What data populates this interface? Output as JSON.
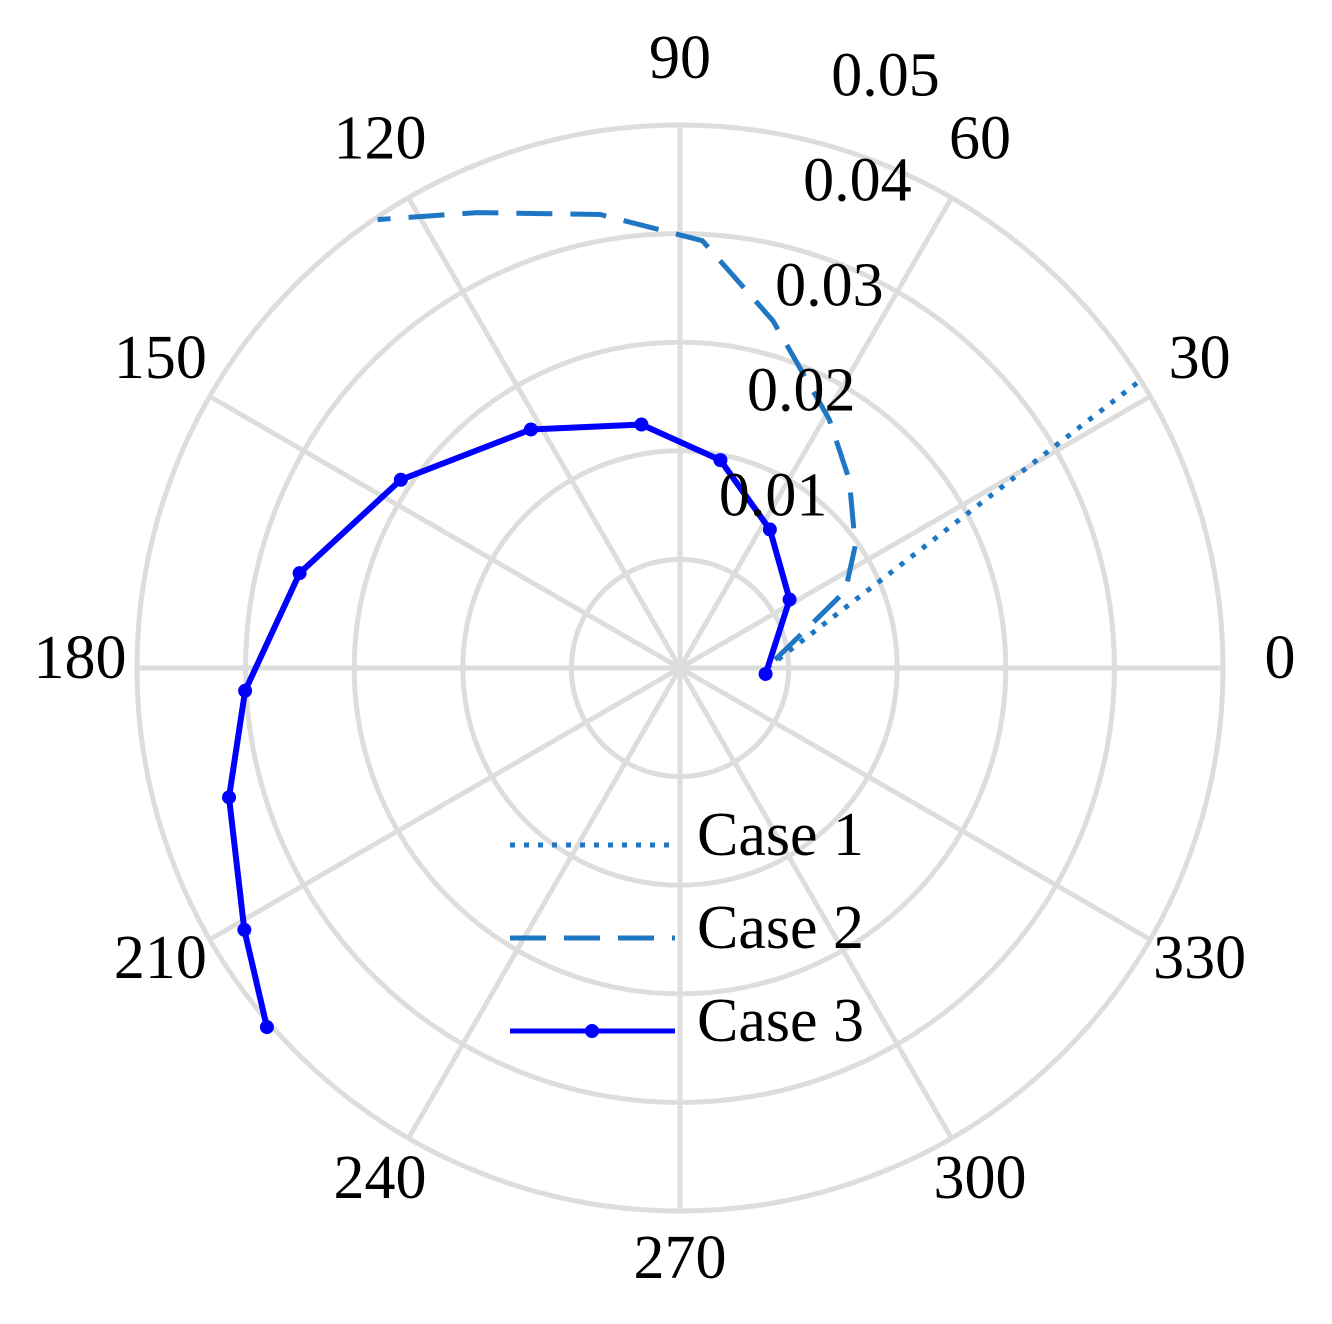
{
  "chart_data": {
    "type": "polar",
    "rlim": [
      0,
      0.05
    ],
    "rticks": [
      0.01,
      0.02,
      0.03,
      0.04,
      0.05
    ],
    "thetaticks": [
      0,
      30,
      60,
      90,
      120,
      150,
      180,
      210,
      240,
      270,
      300,
      330
    ],
    "grid": true,
    "legend": "lower center",
    "series": [
      {
        "name": "Case 1",
        "color": "#1f77c4",
        "linestyle": "dotted",
        "marker": false,
        "theta": [
          0,
          32
        ],
        "r": [
          0.008,
          0.05
        ]
      },
      {
        "name": "Case 2",
        "color": "#1f77c4",
        "linestyle": "dashed",
        "marker": false,
        "theta": [
          5,
          25,
          35,
          48,
          59,
          75,
          87,
          100,
          114,
          124
        ],
        "r": [
          0.0088,
          0.0168,
          0.0197,
          0.0233,
          0.0267,
          0.0331,
          0.0394,
          0.0424,
          0.0459,
          0.0498
        ]
      },
      {
        "name": "Case 3",
        "color": "#0000ff",
        "linestyle": "solid",
        "marker": true,
        "theta": [
          -4,
          32,
          57,
          79,
          99,
          122,
          146,
          166,
          183,
          196,
          211,
          221
        ],
        "r": [
          0.0079,
          0.0119,
          0.0152,
          0.0195,
          0.0227,
          0.0259,
          0.031,
          0.0361,
          0.0401,
          0.0432,
          0.0468,
          0.0504
        ]
      }
    ]
  }
}
